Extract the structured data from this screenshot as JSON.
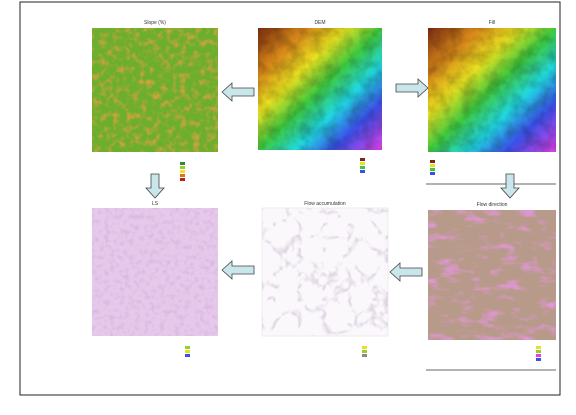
{
  "panels": [
    {
      "title": "Slope (%)"
    },
    {
      "title": "DEM"
    },
    {
      "title": "Fill"
    },
    {
      "title": "LS"
    },
    {
      "title": "Flow accumulation"
    },
    {
      "title": "Flow direction"
    }
  ]
}
